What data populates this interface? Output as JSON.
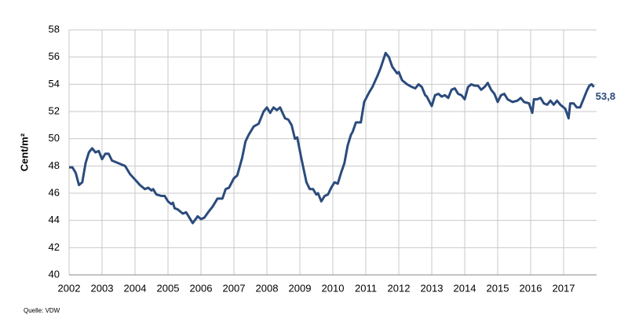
{
  "chart_data": {
    "type": "line",
    "y_label": "Cent/m²",
    "source": "Quelle: VDW",
    "xlim": [
      2002,
      2018
    ],
    "xticks": [
      2002,
      2003,
      2004,
      2005,
      2006,
      2007,
      2008,
      2009,
      2010,
      2011,
      2012,
      2013,
      2014,
      2015,
      2016,
      2017
    ],
    "ylim": [
      40,
      58
    ],
    "yticks": [
      40,
      42,
      44,
      46,
      48,
      50,
      52,
      54,
      56,
      58
    ],
    "grid": true,
    "series": [
      {
        "color": "#2b4b7c",
        "x": [
          2002.0,
          2002.1,
          2002.2,
          2002.3,
          2002.4,
          2002.5,
          2002.6,
          2002.7,
          2002.8,
          2002.9,
          2003.0,
          2003.1,
          2003.2,
          2003.3,
          2003.5,
          2003.7,
          2003.85,
          2004.0,
          2004.15,
          2004.3,
          2004.4,
          2004.5,
          2004.55,
          2004.65,
          2004.8,
          2004.9,
          2005.0,
          2005.1,
          2005.15,
          2005.2,
          2005.3,
          2005.45,
          2005.55,
          2005.65,
          2005.75,
          2005.9,
          2006.0,
          2006.1,
          2006.25,
          2006.35,
          2006.5,
          2006.65,
          2006.75,
          2006.85,
          2007.0,
          2007.1,
          2007.25,
          2007.35,
          2007.45,
          2007.6,
          2007.75,
          2007.9,
          2008.0,
          2008.1,
          2008.2,
          2008.3,
          2008.4,
          2008.55,
          2008.65,
          2008.75,
          2008.85,
          2008.92,
          2009.05,
          2009.2,
          2009.3,
          2009.4,
          2009.5,
          2009.55,
          2009.65,
          2009.75,
          2009.85,
          2009.95,
          2010.05,
          2010.15,
          2010.25,
          2010.35,
          2010.45,
          2010.55,
          2010.6,
          2010.7,
          2010.85,
          2010.95,
          2011.1,
          2011.2,
          2011.35,
          2011.45,
          2011.6,
          2011.7,
          2011.8,
          2011.95,
          2012.0,
          2012.1,
          2012.25,
          2012.4,
          2012.5,
          2012.6,
          2012.7,
          2012.8,
          2012.85,
          2013.0,
          2013.1,
          2013.2,
          2013.3,
          2013.4,
          2013.5,
          2013.6,
          2013.7,
          2013.8,
          2013.9,
          2014.0,
          2014.1,
          2014.2,
          2014.3,
          2014.4,
          2014.5,
          2014.6,
          2014.7,
          2014.8,
          2014.9,
          2015.0,
          2015.1,
          2015.2,
          2015.3,
          2015.45,
          2015.6,
          2015.7,
          2015.8,
          2015.95,
          2016.05,
          2016.1,
          2016.2,
          2016.3,
          2016.4,
          2016.5,
          2016.6,
          2016.7,
          2016.8,
          2016.9,
          2017.05,
          2017.15,
          2017.2,
          2017.3,
          2017.4,
          2017.5,
          2017.6,
          2017.7,
          2017.78,
          2017.85,
          2017.92
        ],
        "values": [
          47.9,
          47.9,
          47.5,
          46.6,
          46.8,
          48.2,
          49.0,
          49.3,
          49.0,
          49.1,
          48.5,
          48.9,
          48.9,
          48.4,
          48.2,
          48.0,
          47.4,
          47.0,
          46.6,
          46.3,
          46.4,
          46.2,
          46.3,
          45.9,
          45.8,
          45.8,
          45.4,
          45.2,
          45.3,
          44.9,
          44.8,
          44.5,
          44.6,
          44.2,
          43.8,
          44.3,
          44.1,
          44.2,
          44.7,
          45.0,
          45.6,
          45.6,
          46.3,
          46.4,
          47.1,
          47.3,
          48.6,
          49.8,
          50.3,
          50.9,
          51.1,
          52.0,
          52.3,
          51.9,
          52.3,
          52.1,
          52.3,
          51.5,
          51.4,
          51.0,
          50.0,
          50.1,
          48.5,
          46.8,
          46.3,
          46.3,
          45.9,
          46.0,
          45.4,
          45.8,
          45.9,
          46.4,
          46.8,
          46.7,
          47.5,
          48.2,
          49.5,
          50.3,
          50.5,
          51.2,
          51.2,
          52.7,
          53.4,
          53.8,
          54.6,
          55.2,
          56.3,
          56.0,
          55.3,
          54.8,
          54.9,
          54.3,
          54.0,
          53.8,
          53.7,
          54.0,
          53.8,
          53.2,
          53.1,
          52.4,
          53.2,
          53.3,
          53.1,
          53.2,
          53.0,
          53.6,
          53.7,
          53.3,
          53.2,
          52.9,
          53.8,
          54.0,
          53.9,
          53.9,
          53.6,
          53.8,
          54.1,
          53.6,
          53.3,
          52.7,
          53.2,
          53.3,
          52.9,
          52.7,
          52.8,
          53.0,
          52.7,
          52.6,
          51.9,
          52.9,
          52.9,
          53.0,
          52.6,
          52.5,
          52.8,
          52.5,
          52.8,
          52.5,
          52.2,
          51.5,
          52.6,
          52.6,
          52.3,
          52.3,
          52.9,
          53.5,
          53.9,
          54.0,
          53.8
        ],
        "value_labels": [
          null,
          null,
          null,
          null,
          null,
          null,
          null,
          null,
          null,
          null,
          null,
          null,
          null,
          null,
          null,
          null,
          null,
          null,
          null,
          null,
          null,
          null,
          null,
          null,
          null,
          null,
          null,
          null,
          null,
          null,
          null,
          null,
          null,
          null,
          null,
          null,
          null,
          null,
          null,
          null,
          null,
          null,
          null,
          null,
          null,
          null,
          null,
          null,
          null,
          null,
          null,
          null,
          null,
          null,
          null,
          null,
          null,
          null,
          null,
          null,
          null,
          null,
          null,
          null,
          null,
          null,
          null,
          null,
          null,
          null,
          null,
          null,
          null,
          null,
          null,
          null,
          null,
          null,
          null,
          null,
          null,
          null,
          null,
          null,
          null,
          null,
          null,
          null,
          null,
          null,
          null,
          null,
          null,
          null,
          null,
          null,
          null,
          null,
          null,
          null,
          null,
          null,
          null,
          null,
          null,
          null,
          null,
          null,
          null,
          null,
          null,
          null,
          null,
          null,
          null,
          null,
          null,
          null,
          null,
          null,
          null,
          null,
          null,
          null,
          null,
          null,
          null,
          null,
          null,
          null,
          null,
          null,
          null,
          null,
          null,
          null,
          null,
          null,
          null,
          null,
          null,
          null,
          null,
          null,
          null,
          null,
          null,
          null,
          "53,8"
        ]
      }
    ]
  }
}
